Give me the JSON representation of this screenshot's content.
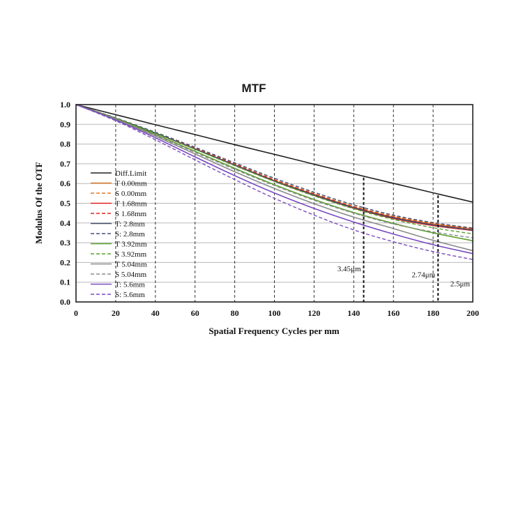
{
  "chart_data": {
    "type": "line",
    "title": "MTF",
    "xlabel": "Spatial Frequency Cycles per mm",
    "ylabel": "Modulus Of  the OTF",
    "xlim": [
      0,
      200
    ],
    "ylim": [
      0,
      1.0
    ],
    "x_ticks": [
      "0",
      "20",
      "40",
      "60",
      "80",
      "100",
      "120",
      "140",
      "160",
      "180",
      "200"
    ],
    "y_ticks": [
      "0.0",
      "0.1",
      "0.2",
      "0.3",
      "0.4",
      "0.5",
      "0.6",
      "0.7",
      "0.8",
      "0.9",
      "1.0"
    ],
    "x_gridlines": [
      20,
      40,
      60,
      80,
      100,
      120,
      140,
      160,
      180
    ],
    "y_gridlines": [
      0.1,
      0.2,
      0.3,
      0.4,
      0.5,
      0.6,
      0.7,
      0.8,
      0.9
    ],
    "legend_position": "left",
    "x": [
      0,
      20,
      40,
      60,
      80,
      100,
      120,
      140,
      160,
      180,
      200
    ],
    "series": [
      {
        "name": "Diff.Limit",
        "color": "#222222",
        "dash": false,
        "values": [
          1.0,
          0.949,
          0.898,
          0.848,
          0.797,
          0.748,
          0.698,
          0.649,
          0.601,
          0.553,
          0.506
        ]
      },
      {
        "name": "T 0.00mm",
        "color": "#e07a2a",
        "dash": false,
        "values": [
          1.0,
          0.93,
          0.855,
          0.775,
          0.695,
          0.615,
          0.545,
          0.48,
          0.43,
          0.395,
          0.37
        ]
      },
      {
        "name": "S 0.00mm",
        "color": "#e07a2a",
        "dash": true,
        "values": [
          1.0,
          0.932,
          0.858,
          0.78,
          0.7,
          0.62,
          0.55,
          0.485,
          0.435,
          0.4,
          0.375
        ]
      },
      {
        "name": "T 1.68mm",
        "color": "#e02020",
        "dash": false,
        "values": [
          1.0,
          0.93,
          0.855,
          0.775,
          0.693,
          0.612,
          0.54,
          0.475,
          0.423,
          0.387,
          0.362
        ]
      },
      {
        "name": "S 1.68mm",
        "color": "#e02020",
        "dash": true,
        "values": [
          1.0,
          0.931,
          0.857,
          0.778,
          0.698,
          0.618,
          0.546,
          0.481,
          0.43,
          0.393,
          0.366
        ]
      },
      {
        "name": "T: 2.8mm",
        "color": "#44506a",
        "dash": false,
        "values": [
          1.0,
          0.93,
          0.855,
          0.775,
          0.694,
          0.613,
          0.542,
          0.477,
          0.426,
          0.39,
          0.364
        ]
      },
      {
        "name": "S: 2.8mm",
        "color": "#44507a",
        "dash": true,
        "values": [
          1.0,
          0.933,
          0.86,
          0.784,
          0.705,
          0.627,
          0.556,
          0.492,
          0.44,
          0.402,
          0.374
        ]
      },
      {
        "name": "T 3.92mm",
        "color": "#5aa02c",
        "dash": false,
        "values": [
          1.0,
          0.928,
          0.848,
          0.763,
          0.677,
          0.594,
          0.519,
          0.453,
          0.398,
          0.35,
          0.31
        ]
      },
      {
        "name": "S 3.92mm",
        "color": "#5aa02c",
        "dash": true,
        "values": [
          1.0,
          0.931,
          0.855,
          0.773,
          0.69,
          0.61,
          0.537,
          0.472,
          0.418,
          0.376,
          0.345
        ]
      },
      {
        "name": "T 5.04mm",
        "color": "#8a8a8a",
        "dash": false,
        "values": [
          1.0,
          0.925,
          0.84,
          0.75,
          0.66,
          0.575,
          0.498,
          0.43,
          0.372,
          0.312,
          0.26
        ]
      },
      {
        "name": "S 5.04mm",
        "color": "#8a8a8a",
        "dash": true,
        "values": [
          1.0,
          0.927,
          0.845,
          0.758,
          0.672,
          0.59,
          0.515,
          0.45,
          0.395,
          0.355,
          0.325
        ]
      },
      {
        "name": "T: 5.6mm",
        "color": "#7a4ac0",
        "dash": false,
        "values": [
          1.0,
          0.922,
          0.832,
          0.735,
          0.64,
          0.552,
          0.474,
          0.405,
          0.344,
          0.29,
          0.245
        ]
      },
      {
        "name": "S: 5.6mm",
        "color": "#7a4ac0",
        "dash": true,
        "values": [
          1.0,
          0.918,
          0.822,
          0.72,
          0.62,
          0.525,
          0.44,
          0.365,
          0.305,
          0.255,
          0.215
        ]
      }
    ],
    "annotations": [
      {
        "text": "3.45μm",
        "x": 145,
        "y_top": 0.63,
        "label_y": 0.155
      },
      {
        "text": "2.74μm",
        "x": 182.5,
        "y_top": 0.54,
        "label_y": 0.125
      },
      {
        "text": "2.5μm",
        "x": 200,
        "y_top": 0.5,
        "label_y": 0.08
      }
    ]
  }
}
